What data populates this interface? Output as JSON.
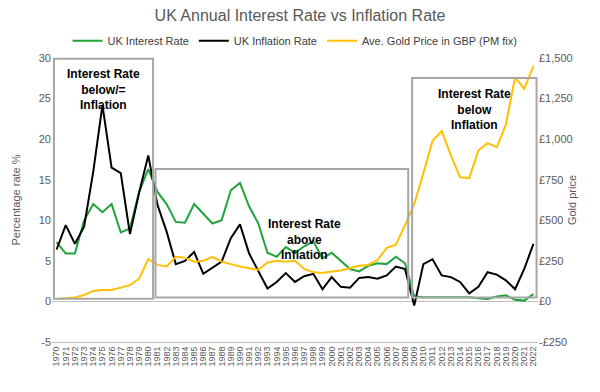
{
  "chart_data": {
    "type": "line",
    "title": "UK Annual Interest Rate vs Inflation Rate",
    "x_label": "",
    "y_label": "Percentage rate %",
    "y2_label": "Gold price",
    "x": [
      1970,
      1971,
      1972,
      1973,
      1974,
      1975,
      1976,
      1977,
      1978,
      1979,
      1980,
      1981,
      1982,
      1983,
      1984,
      1985,
      1986,
      1987,
      1988,
      1989,
      1990,
      1991,
      1992,
      1993,
      1994,
      1995,
      1996,
      1997,
      1998,
      1999,
      2000,
      2001,
      2002,
      2003,
      2004,
      2005,
      2006,
      2007,
      2008,
      2009,
      2010,
      2011,
      2012,
      2013,
      2014,
      2015,
      2016,
      2017,
      2018,
      2019,
      2020,
      2021,
      2022
    ],
    "series": [
      {
        "name": "UK Interest Rate",
        "color": "#1fa33a",
        "axis": "y",
        "values": [
          7.3,
          5.9,
          5.9,
          10,
          12,
          11,
          12,
          8.5,
          9,
          13.5,
          16.3,
          13.5,
          12,
          9.8,
          9.7,
          12,
          10.8,
          9.6,
          10,
          13.7,
          14.6,
          11.7,
          9.6,
          6,
          5.5,
          6.7,
          6,
          6.8,
          7.4,
          5.3,
          6,
          5,
          4,
          3.7,
          4.4,
          4.7,
          4.6,
          5.5,
          4.7,
          0.6,
          0.5,
          0.5,
          0.5,
          0.5,
          0.5,
          0.5,
          0.4,
          0.3,
          0.6,
          0.75,
          0.2,
          0.1,
          0.9
        ]
      },
      {
        "name": "UK Inflation Rate",
        "color": "#000000",
        "axis": "y",
        "values": [
          6.4,
          9.4,
          7.1,
          9.2,
          16,
          24.2,
          16.5,
          15.8,
          8.3,
          13.4,
          18,
          11.9,
          8.6,
          4.6,
          5,
          6.1,
          3.4,
          4.2,
          4.9,
          7.8,
          9.5,
          5.9,
          3.7,
          1.6,
          2.4,
          3.5,
          2.4,
          3.1,
          3.4,
          1.5,
          3,
          1.8,
          1.7,
          2.9,
          3,
          2.8,
          3.2,
          4.3,
          4,
          -0.5,
          4.6,
          5.2,
          3.2,
          3,
          2.4,
          1,
          1.8,
          3.6,
          3.3,
          2.6,
          1.5,
          4,
          7.1
        ]
      },
      {
        "name": "Ave. Gold Price in GBP (PM fix)",
        "color": "#ffc000",
        "axis": "y2",
        "values": [
          15,
          18,
          24,
          40,
          65,
          70,
          70,
          85,
          100,
          140,
          260,
          225,
          215,
          275,
          270,
          245,
          250,
          275,
          245,
          230,
          215,
          205,
          195,
          240,
          250,
          245,
          250,
          200,
          180,
          175,
          185,
          190,
          205,
          220,
          225,
          255,
          330,
          350,
          470,
          600,
          790,
          990,
          1050,
          900,
          765,
          760,
          930,
          975,
          950,
          1090,
          1380,
          1310,
          1450
        ]
      }
    ],
    "xlim": [
      1969.5,
      2022.5
    ],
    "xticks": [
      1970,
      1971,
      1972,
      1973,
      1974,
      1975,
      1976,
      1977,
      1978,
      1979,
      1980,
      1981,
      1982,
      1983,
      1984,
      1985,
      1986,
      1987,
      1988,
      1989,
      1990,
      1991,
      1992,
      1993,
      1994,
      1995,
      1996,
      1997,
      1998,
      1999,
      2000,
      2001,
      2002,
      2003,
      2004,
      2005,
      2006,
      2007,
      2008,
      2009,
      2010,
      2011,
      2012,
      2013,
      2014,
      2015,
      2016,
      2017,
      2018,
      2019,
      2020,
      2021,
      2022
    ],
    "ylim": [
      -5,
      30
    ],
    "yticks": [
      -5,
      0,
      5,
      10,
      15,
      20,
      25,
      30
    ],
    "y2lim": [
      -250,
      1500
    ],
    "y2ticks": [
      {
        "value": -250,
        "label": "-£250"
      },
      {
        "value": 0,
        "label": "£0"
      },
      {
        "value": 250,
        "label": "£250"
      },
      {
        "value": 500,
        "label": "£500"
      },
      {
        "value": 750,
        "label": "£750"
      },
      {
        "value": 1000,
        "label": "£1,000"
      },
      {
        "value": 1250,
        "label": "£1,250"
      },
      {
        "value": 1500,
        "label": "£1,500"
      }
    ],
    "annotations": [
      "Interest Rate\nbelow/=\nInflation",
      "Interest Rate\nabove\nInflation",
      "Interest Rate\nbelow\nInflation"
    ],
    "grid": false,
    "legend": "top"
  }
}
